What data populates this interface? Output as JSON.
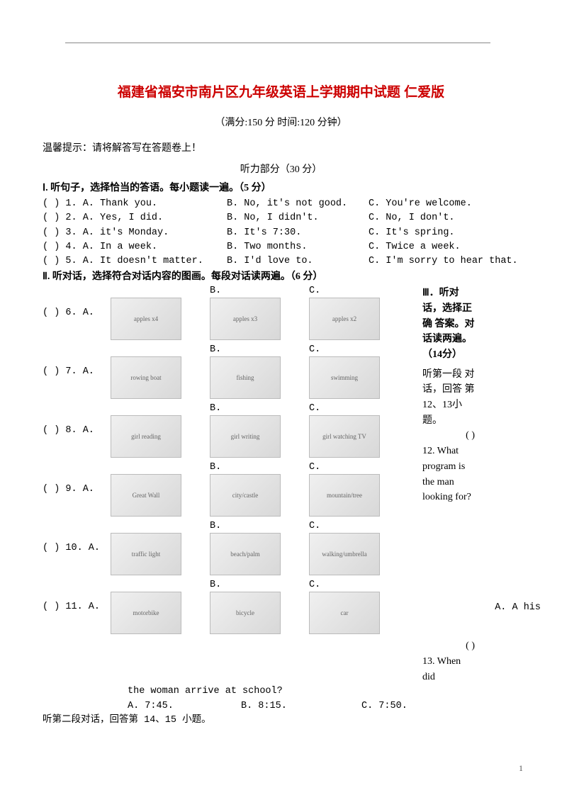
{
  "page": {
    "title": "福建省福安市南片区九年级英语上学期期中试题 仁爱版",
    "subtitle": "（满分:150 分   时间:120 分钟）",
    "tip": "温馨提示：请将解答写在答题卷上！",
    "listening_header": "听力部分（30 分）",
    "page_number": "1"
  },
  "sec1": {
    "instr": "Ⅰ. 听句子，选择恰当的答语。每小题读一遍。（5 分）",
    "rows": [
      {
        "a": "(     ) 1. A. Thank you.",
        "b": "B. No, it's not good.",
        "c": "C. You're welcome."
      },
      {
        "a": "(     ) 2. A. Yes, I did.",
        "b": "B. No, I didn't.",
        "c": "C. No, I don't."
      },
      {
        "a": "(     ) 3. A. it's Monday.",
        "b": "B. It's 7:30.",
        "c": "C. It's spring."
      },
      {
        "a": "(     ) 4. A. In a week.",
        "b": "B. Two months.",
        "c": "C. Twice a week."
      },
      {
        "a": "(     ) 5. A. It doesn't matter.",
        "b": "B. I'd love to.",
        "c": "C. I'm sorry to hear that."
      }
    ]
  },
  "sec2": {
    "instr": "Ⅱ. 听对话，选择符合对话内容的图画。每段对话读两遍。（6 分）",
    "rows": [
      {
        "n": "(     ) 6. A.",
        "imgA": "apples x4",
        "imgB": "apples x3",
        "imgC": "apples x2"
      },
      {
        "n": "(     ) 7. A.",
        "imgA": "rowing boat",
        "imgB": "fishing",
        "imgC": "swimming"
      },
      {
        "n": "(     ) 8. A.",
        "imgA": "girl reading",
        "imgB": "girl writing",
        "imgC": "girl watching TV"
      },
      {
        "n": "(     ) 9. A.",
        "imgA": "Great Wall",
        "imgB": "city/castle",
        "imgC": "mountain/tree"
      },
      {
        "n": "(     ) 10. A.",
        "imgA": "traffic light",
        "imgB": "beach/palm",
        "imgC": "walking/umbrella"
      },
      {
        "n": "(     ) 11. A.",
        "imgA": "motorbike",
        "imgB": "bicycle",
        "imgC": "car"
      }
    ],
    "letterB": "B.",
    "letterC": "C."
  },
  "sec3": {
    "right_text_1": "Ⅲ．听对话，选择正确 答案。对话读两遍。（14分）",
    "right_text_2": "听第一段 对话，回答 第12、13小题。",
    "paren1": "(     )",
    "q12": "12. What program  is the man looking for?",
    "marginA": "A. A his",
    "paren2": "(     )",
    "q13": "13. When  did",
    "follow": "the woman arrive at school?",
    "opts": {
      "a": "A. 7:45.",
      "b": "B. 8:15.",
      "c": "C. 7:50."
    },
    "next": "听第二段对话，回答第 14、15 小题。"
  }
}
